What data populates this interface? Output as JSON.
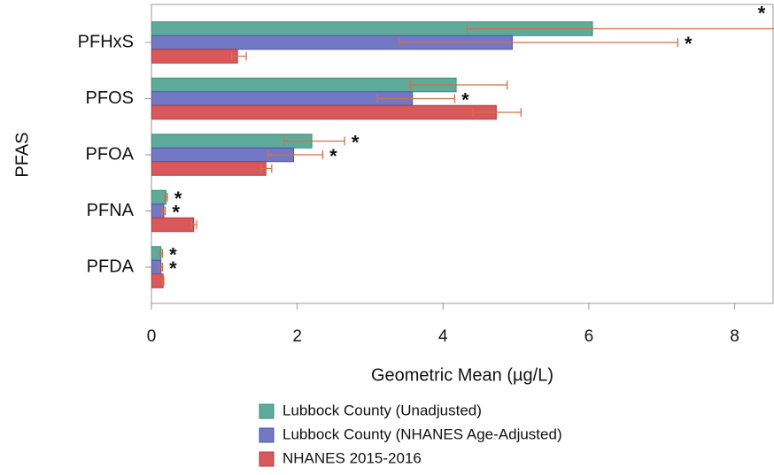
{
  "chart_data": {
    "type": "bar",
    "orientation": "horizontal",
    "x_label": "Geometric Mean (µg/L)",
    "y_label": "PFAS",
    "categories": [
      "PFHxS",
      "PFOS",
      "PFOA",
      "PFNA",
      "PFDA"
    ],
    "series": [
      {
        "name": "Lubbock County (Unadjusted)",
        "color": "#5fab9b",
        "edge": "#3b8a79",
        "values": [
          6.05,
          4.18,
          2.2,
          0.2,
          0.13
        ],
        "error_low": [
          4.33,
          3.55,
          1.82,
          0.18,
          0.11
        ],
        "error_high": [
          8.8,
          4.88,
          2.65,
          0.22,
          0.15
        ],
        "annotations": [
          "*",
          null,
          "*",
          "*",
          "*"
        ]
      },
      {
        "name": "Lubbock County (NHANES Age-Adjusted)",
        "color": "#7378c4",
        "edge": "#4f55a8",
        "values": [
          4.95,
          3.58,
          1.95,
          0.17,
          0.13
        ],
        "error_low": [
          3.4,
          3.1,
          1.6,
          0.15,
          0.11
        ],
        "error_high": [
          7.22,
          4.16,
          2.35,
          0.19,
          0.15
        ],
        "annotations": [
          "*",
          "*",
          "*",
          "*",
          "*"
        ]
      },
      {
        "name": "NHANES 2015-2016",
        "color": "#d8585b",
        "edge": "#b33a3d",
        "values": [
          1.18,
          4.73,
          1.57,
          0.58,
          0.16
        ],
        "error_low": [
          1.1,
          4.41,
          1.5,
          0.55,
          0.15
        ],
        "error_high": [
          1.3,
          5.07,
          1.65,
          0.62,
          0.17
        ],
        "annotations": [
          null,
          null,
          null,
          null,
          null
        ]
      }
    ],
    "error_color": "#d0704a",
    "xlim": [
      0,
      8.54
    ],
    "xticks": [
      0,
      2,
      4,
      6,
      8
    ]
  }
}
